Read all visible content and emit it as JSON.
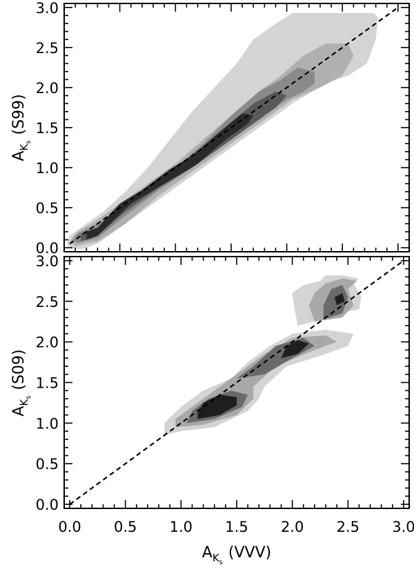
{
  "chart_data": [
    {
      "type": "contour",
      "ylabel": {
        "main": "A",
        "sub": "K",
        "subsub": "s",
        "rest": "(S99)"
      },
      "xlim": [
        0.0,
        3.1
      ],
      "ylim": [
        -0.05,
        3.05
      ],
      "xticks": [
        "0.0",
        "0.5",
        "1.0",
        "1.5",
        "2.0",
        "2.5",
        "3.0"
      ],
      "yticks": [
        "0.0",
        "0.5",
        "1.0",
        "1.5",
        "2.0",
        "2.5",
        "3.0"
      ],
      "show_xtick_labels": false,
      "reference_line": {
        "style": "dashed",
        "x": [
          0.05,
          3.0
        ],
        "y": [
          0.05,
          3.0
        ]
      },
      "contour_levels": [
        {
          "shade": "#d4d4d4",
          "polygon": [
            [
              0.05,
              0.0
            ],
            [
              0.15,
              -0.02
            ],
            [
              0.3,
              0.05
            ],
            [
              0.45,
              0.2
            ],
            [
              0.7,
              0.45
            ],
            [
              1.0,
              0.75
            ],
            [
              1.3,
              1.05
            ],
            [
              1.55,
              1.3
            ],
            [
              1.8,
              1.55
            ],
            [
              2.05,
              1.8
            ],
            [
              2.35,
              2.05
            ],
            [
              2.55,
              2.15
            ],
            [
              2.72,
              2.3
            ],
            [
              2.8,
              2.6
            ],
            [
              2.82,
              2.88
            ],
            [
              2.78,
              2.93
            ],
            [
              2.05,
              2.93
            ],
            [
              1.85,
              2.75
            ],
            [
              1.7,
              2.6
            ],
            [
              1.55,
              2.3
            ],
            [
              1.35,
              2.0
            ],
            [
              1.15,
              1.7
            ],
            [
              0.95,
              1.35
            ],
            [
              0.75,
              1.0
            ],
            [
              0.55,
              0.7
            ],
            [
              0.35,
              0.45
            ],
            [
              0.18,
              0.28
            ],
            [
              0.05,
              0.15
            ],
            [
              0.02,
              0.05
            ]
          ]
        },
        {
          "shade": "#b0b0b0",
          "polygon": [
            [
              0.1,
              0.02
            ],
            [
              0.3,
              0.08
            ],
            [
              0.55,
              0.3
            ],
            [
              0.85,
              0.65
            ],
            [
              1.15,
              0.95
            ],
            [
              1.45,
              1.25
            ],
            [
              1.75,
              1.55
            ],
            [
              2.05,
              1.85
            ],
            [
              2.3,
              2.0
            ],
            [
              2.5,
              2.15
            ],
            [
              2.6,
              2.4
            ],
            [
              2.55,
              2.55
            ],
            [
              2.35,
              2.55
            ],
            [
              2.15,
              2.4
            ],
            [
              1.95,
              2.15
            ],
            [
              1.75,
              1.95
            ],
            [
              1.5,
              1.65
            ],
            [
              1.25,
              1.35
            ],
            [
              1.0,
              1.05
            ],
            [
              0.75,
              0.8
            ],
            [
              0.5,
              0.55
            ],
            [
              0.3,
              0.35
            ],
            [
              0.12,
              0.2
            ],
            [
              0.05,
              0.08
            ]
          ]
        },
        {
          "shade": "#8a8a8a",
          "polygon": [
            [
              0.12,
              0.06
            ],
            [
              0.3,
              0.12
            ],
            [
              0.55,
              0.4
            ],
            [
              0.85,
              0.72
            ],
            [
              1.15,
              1.0
            ],
            [
              1.45,
              1.3
            ],
            [
              1.75,
              1.6
            ],
            [
              2.0,
              1.85
            ],
            [
              2.15,
              1.95
            ],
            [
              2.25,
              2.05
            ],
            [
              2.25,
              2.2
            ],
            [
              2.1,
              2.25
            ],
            [
              1.95,
              2.1
            ],
            [
              1.75,
              1.95
            ],
            [
              1.5,
              1.65
            ],
            [
              1.25,
              1.3
            ],
            [
              1.0,
              1.0
            ],
            [
              0.75,
              0.75
            ],
            [
              0.5,
              0.5
            ],
            [
              0.3,
              0.3
            ],
            [
              0.12,
              0.18
            ],
            [
              0.08,
              0.1
            ]
          ]
        },
        {
          "shade": "#595959",
          "polygon": [
            [
              0.15,
              0.08
            ],
            [
              0.3,
              0.15
            ],
            [
              0.55,
              0.45
            ],
            [
              0.85,
              0.75
            ],
            [
              1.15,
              1.0
            ],
            [
              1.45,
              1.3
            ],
            [
              1.7,
              1.55
            ],
            [
              1.9,
              1.75
            ],
            [
              2.0,
              1.9
            ],
            [
              1.9,
              1.95
            ],
            [
              1.7,
              1.8
            ],
            [
              1.45,
              1.5
            ],
            [
              1.2,
              1.15
            ],
            [
              0.95,
              0.95
            ],
            [
              0.7,
              0.7
            ],
            [
              0.5,
              0.5
            ],
            [
              0.3,
              0.25
            ],
            [
              0.15,
              0.18
            ]
          ]
        },
        {
          "shade": "#2a2a2a",
          "polygon": [
            [
              0.2,
              0.1
            ],
            [
              0.3,
              0.15
            ],
            [
              0.6,
              0.55
            ],
            [
              0.9,
              0.8
            ],
            [
              1.2,
              1.05
            ],
            [
              1.45,
              1.35
            ],
            [
              1.65,
              1.55
            ],
            [
              1.7,
              1.65
            ],
            [
              1.6,
              1.68
            ],
            [
              1.4,
              1.45
            ],
            [
              1.15,
              1.15
            ],
            [
              0.95,
              0.98
            ],
            [
              0.7,
              0.72
            ],
            [
              0.5,
              0.55
            ],
            [
              0.3,
              0.25
            ],
            [
              0.2,
              0.2
            ]
          ]
        }
      ]
    },
    {
      "type": "contour",
      "xlabel": {
        "main": "A",
        "sub": "K",
        "subsub": "s",
        "rest": "(VVV)"
      },
      "ylabel": {
        "main": "A",
        "sub": "K",
        "subsub": "s",
        "rest": "(S09)"
      },
      "xlim": [
        -0.05,
        3.05
      ],
      "ylim": [
        -0.05,
        3.05
      ],
      "xticks": [
        "0.0",
        "0.5",
        "1.0",
        "1.5",
        "2.0",
        "2.5",
        "3.0"
      ],
      "yticks": [
        "0.0",
        "0.5",
        "1.0",
        "1.5",
        "2.0",
        "2.5",
        "3.0"
      ],
      "show_xtick_labels": true,
      "reference_line": {
        "style": "dashed",
        "x": [
          0.0,
          3.0
        ],
        "y": [
          0.0,
          3.0
        ]
      },
      "contour_levels": [
        {
          "shade": "#d4d4d4",
          "polygon": [
            [
              0.85,
              0.85
            ],
            [
              1.0,
              0.9
            ],
            [
              1.3,
              0.95
            ],
            [
              1.6,
              1.15
            ],
            [
              1.7,
              1.3
            ],
            [
              1.75,
              1.45
            ],
            [
              1.95,
              1.7
            ],
            [
              2.3,
              1.85
            ],
            [
              2.5,
              1.95
            ],
            [
              2.55,
              2.1
            ],
            [
              2.3,
              2.15
            ],
            [
              2.0,
              2.1
            ],
            [
              1.8,
              1.95
            ],
            [
              1.6,
              1.75
            ],
            [
              1.45,
              1.55
            ],
            [
              1.2,
              1.4
            ],
            [
              1.0,
              1.2
            ],
            [
              0.85,
              1.0
            ]
          ]
        },
        {
          "shade": "#d4d4d4",
          "polygon": [
            [
              2.05,
              2.2
            ],
            [
              2.2,
              2.25
            ],
            [
              2.4,
              2.35
            ],
            [
              2.6,
              2.4
            ],
            [
              2.62,
              2.55
            ],
            [
              2.55,
              2.72
            ],
            [
              2.6,
              2.78
            ],
            [
              2.45,
              2.82
            ],
            [
              2.3,
              2.82
            ],
            [
              2.25,
              2.75
            ],
            [
              2.1,
              2.7
            ],
            [
              2.0,
              2.6
            ],
            [
              2.02,
              2.4
            ]
          ]
        },
        {
          "shade": "#a8a8a8",
          "polygon": [
            [
              0.95,
              0.95
            ],
            [
              1.2,
              0.98
            ],
            [
              1.5,
              1.1
            ],
            [
              1.65,
              1.3
            ],
            [
              1.65,
              1.45
            ],
            [
              1.85,
              1.7
            ],
            [
              2.2,
              1.9
            ],
            [
              2.4,
              2.0
            ],
            [
              2.3,
              2.08
            ],
            [
              2.0,
              2.05
            ],
            [
              1.75,
              1.85
            ],
            [
              1.5,
              1.6
            ],
            [
              1.3,
              1.4
            ],
            [
              1.1,
              1.2
            ],
            [
              0.95,
              1.05
            ]
          ]
        },
        {
          "shade": "#a8a8a8",
          "polygon": [
            [
              2.2,
              2.25
            ],
            [
              2.45,
              2.3
            ],
            [
              2.55,
              2.45
            ],
            [
              2.5,
              2.65
            ],
            [
              2.58,
              2.75
            ],
            [
              2.45,
              2.78
            ],
            [
              2.3,
              2.72
            ],
            [
              2.2,
              2.6
            ],
            [
              2.15,
              2.45
            ]
          ]
        },
        {
          "shade": "#6a6a6a",
          "polygon": [
            [
              1.05,
              1.0
            ],
            [
              1.3,
              1.05
            ],
            [
              1.55,
              1.2
            ],
            [
              1.6,
              1.35
            ],
            [
              1.45,
              1.4
            ],
            [
              1.25,
              1.3
            ],
            [
              1.1,
              1.15
            ]
          ]
        },
        {
          "shade": "#6a6a6a",
          "polygon": [
            [
              1.5,
              1.55
            ],
            [
              1.75,
              1.6
            ],
            [
              2.0,
              1.8
            ],
            [
              2.2,
              1.95
            ],
            [
              2.1,
              2.05
            ],
            [
              1.85,
              1.95
            ],
            [
              1.65,
              1.7
            ]
          ]
        },
        {
          "shade": "#6a6a6a",
          "polygon": [
            [
              2.28,
              2.28
            ],
            [
              2.45,
              2.35
            ],
            [
              2.5,
              2.55
            ],
            [
              2.45,
              2.7
            ],
            [
              2.35,
              2.65
            ],
            [
              2.28,
              2.45
            ]
          ]
        },
        {
          "shade": "#1e1e1e",
          "polygon": [
            [
              1.15,
              1.05
            ],
            [
              1.35,
              1.1
            ],
            [
              1.5,
              1.22
            ],
            [
              1.5,
              1.32
            ],
            [
              1.35,
              1.35
            ],
            [
              1.2,
              1.25
            ],
            [
              1.15,
              1.12
            ]
          ]
        },
        {
          "shade": "#1e1e1e",
          "polygon": [
            [
              1.9,
              1.8
            ],
            [
              2.05,
              1.85
            ],
            [
              2.15,
              1.98
            ],
            [
              2.05,
              2.02
            ],
            [
              1.95,
              1.95
            ]
          ]
        },
        {
          "shade": "#1e1e1e",
          "polygon": [
            [
              2.4,
              2.45
            ],
            [
              2.47,
              2.5
            ],
            [
              2.45,
              2.6
            ],
            [
              2.38,
              2.55
            ]
          ]
        }
      ]
    }
  ]
}
